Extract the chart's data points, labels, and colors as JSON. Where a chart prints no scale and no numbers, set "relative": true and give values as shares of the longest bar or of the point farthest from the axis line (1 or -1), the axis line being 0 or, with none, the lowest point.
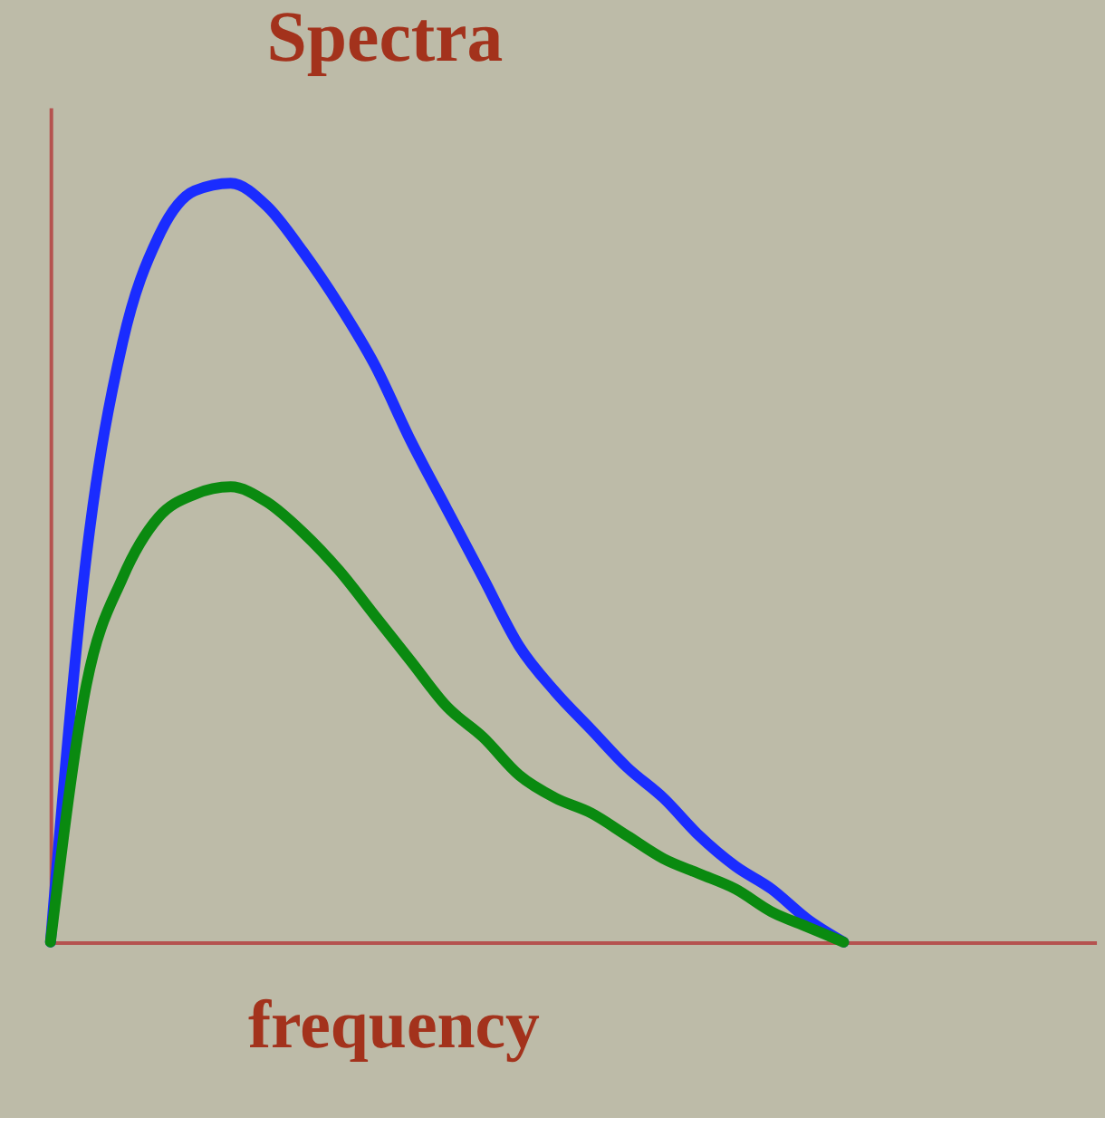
{
  "chart_data": {
    "type": "line",
    "title": "Spectra",
    "xlabel": "frequency",
    "relative": true,
    "tick_labels": false,
    "grid": false,
    "marker": "none",
    "line_style": "solid",
    "categories": [
      null,
      null,
      null,
      null,
      null,
      null,
      null,
      null,
      null,
      null,
      null,
      null,
      null,
      null,
      null,
      null,
      null,
      null,
      null,
      null,
      null,
      null,
      null,
      null,
      null,
      null,
      null,
      null,
      null,
      null
    ],
    "series": [
      {
        "color": "#1a2cff",
        "values": [
          0,
          0.51,
          0.79,
          0.93,
          0.99,
          1.0,
          0.97,
          0.91,
          0.84,
          0.76,
          0.66,
          0.57,
          0.48,
          0.39,
          0.33,
          0.28,
          0.23,
          0.19,
          0.14,
          0.1,
          0.07,
          0.03,
          0,
          null,
          null,
          null,
          null,
          null,
          null,
          null
        ]
      },
      {
        "color": "#0a8a10",
        "values": [
          0,
          0.34,
          0.48,
          0.56,
          0.59,
          0.6,
          0.58,
          0.54,
          0.49,
          0.43,
          0.37,
          0.31,
          0.27,
          0.22,
          0.19,
          0.17,
          0.14,
          0.11,
          0.09,
          0.07,
          0.04,
          0.02,
          0,
          null,
          null,
          null,
          null,
          null,
          null,
          null
        ]
      }
    ]
  }
}
